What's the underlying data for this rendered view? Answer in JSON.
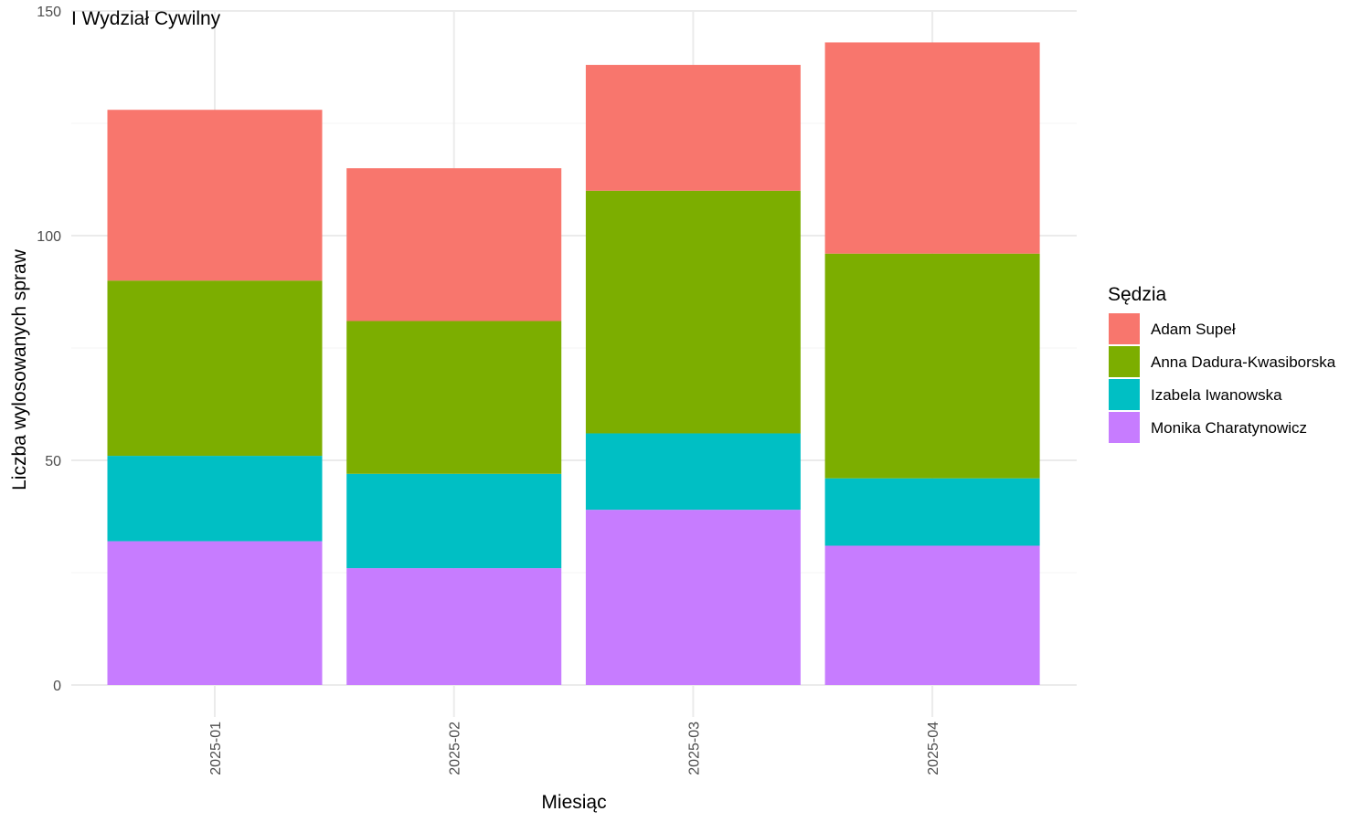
{
  "chart_data": {
    "type": "bar",
    "stacked": true,
    "title": "I Wydział Cywilny",
    "xlabel": "Miesiąc",
    "ylabel": "Liczba wylosowanych spraw",
    "categories": [
      "2025-01",
      "2025-02",
      "2025-03",
      "2025-04"
    ],
    "ylim": [
      0,
      150
    ],
    "yticks": [
      0,
      50,
      100,
      150
    ],
    "grid": true,
    "legend": {
      "title": "Sędzia",
      "position": "right"
    },
    "series": [
      {
        "name": "Monika Charatynowicz",
        "color": "#C77CFF",
        "values": [
          32,
          26,
          39,
          31
        ]
      },
      {
        "name": "Izabela Iwanowska",
        "color": "#00BFC4",
        "values": [
          19,
          21,
          17,
          15
        ]
      },
      {
        "name": "Anna Dadura-Kwasiborska",
        "color": "#7CAE00",
        "values": [
          39,
          34,
          54,
          50
        ]
      },
      {
        "name": "Adam Supeł",
        "color": "#F8766D",
        "values": [
          38,
          34,
          28,
          47
        ]
      }
    ],
    "legend_order": [
      "Adam Supeł",
      "Anna Dadura-Kwasiborska",
      "Izabela Iwanowska",
      "Monika Charatynowicz"
    ]
  }
}
